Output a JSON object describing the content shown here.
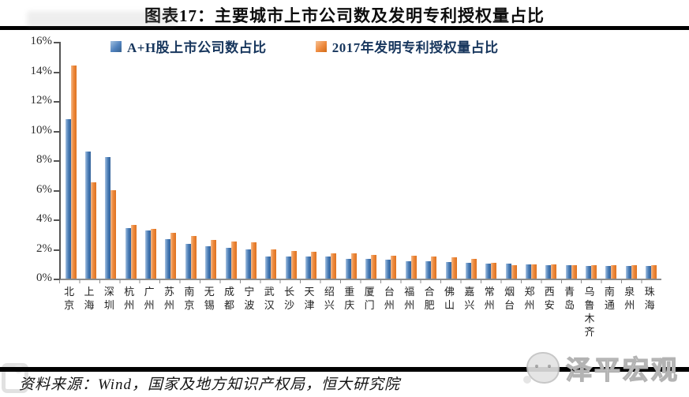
{
  "figure": {
    "source_note": "资料来源：Wind，国家及地方知识产权局，恒大研究院",
    "watermark_right": "泽平宏观"
  },
  "chart_data": {
    "type": "bar",
    "title": "图表17：主要城市上市公司数及发明专利授权量占比",
    "categories": [
      "北京",
      "上海",
      "深圳",
      "杭州",
      "广州",
      "苏州",
      "南京",
      "无锡",
      "成都",
      "宁波",
      "武汉",
      "长沙",
      "天津",
      "绍兴",
      "重庆",
      "厦门",
      "台州",
      "福州",
      "合肥",
      "佛山",
      "嘉兴",
      "常州",
      "烟台",
      "郑州",
      "西安",
      "青岛",
      "乌鲁木齐",
      "南通",
      "泉州",
      "珠海"
    ],
    "series": [
      {
        "name": "A+H股上市公司数占比",
        "color": "#4f81bd",
        "values": [
          10.8,
          8.6,
          8.2,
          3.4,
          3.25,
          2.65,
          2.35,
          2.2,
          2.1,
          2.0,
          1.5,
          1.5,
          1.5,
          1.5,
          1.35,
          1.35,
          1.3,
          1.2,
          1.15,
          1.1,
          1.05,
          1.0,
          1.0,
          0.95,
          0.9,
          0.9,
          0.85,
          0.85,
          0.85,
          0.85
        ]
      },
      {
        "name": "2017年发明专利授权量占比",
        "color": "#ee8a3e",
        "values": [
          14.4,
          6.5,
          6.0,
          3.65,
          3.35,
          3.1,
          2.9,
          2.6,
          2.5,
          2.45,
          1.95,
          1.85,
          1.8,
          1.7,
          1.7,
          1.6,
          1.55,
          1.55,
          1.5,
          1.45,
          1.35,
          1.05,
          0.9,
          0.95,
          0.95,
          0.9,
          0.9,
          0.9,
          0.9,
          0.9
        ]
      }
    ],
    "ylabel": "",
    "xlabel": "",
    "ylim": [
      0,
      16
    ],
    "ytick_labels": [
      "16%",
      "14%",
      "12%",
      "10%",
      "8%",
      "6%",
      "4%",
      "2%",
      "0%"
    ],
    "unit": "%",
    "grid": false,
    "legend_position": "top"
  }
}
